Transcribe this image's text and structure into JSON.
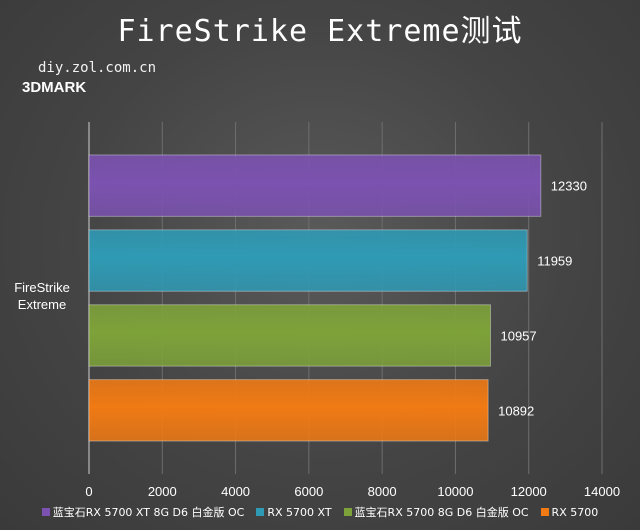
{
  "watermark": "diy.zol.com.cn",
  "brand": "3DMARK",
  "chart_data": {
    "type": "bar",
    "orientation": "horizontal",
    "title": "FireStrike Extreme测试",
    "categories": [
      "FireStrike\nExtreme"
    ],
    "series": [
      {
        "name": "蓝宝石RX 5700 XT 8G D6 白金版 OC",
        "values": [
          12330
        ],
        "color": "#7b52b0"
      },
      {
        "name": "RX 5700 XT",
        "values": [
          11959
        ],
        "color": "#2f9ab4"
      },
      {
        "name": "蓝宝石RX 5700  8G D6 白金版 OC",
        "values": [
          10957
        ],
        "color": "#7ea23a"
      },
      {
        "name": "RX 5700",
        "values": [
          10892
        ],
        "color": "#f07a14"
      }
    ],
    "xlim": [
      0,
      14000
    ],
    "xticks": [
      0,
      2000,
      4000,
      6000,
      8000,
      10000,
      12000,
      14000
    ],
    "grid": true,
    "legend_position": "bottom"
  }
}
